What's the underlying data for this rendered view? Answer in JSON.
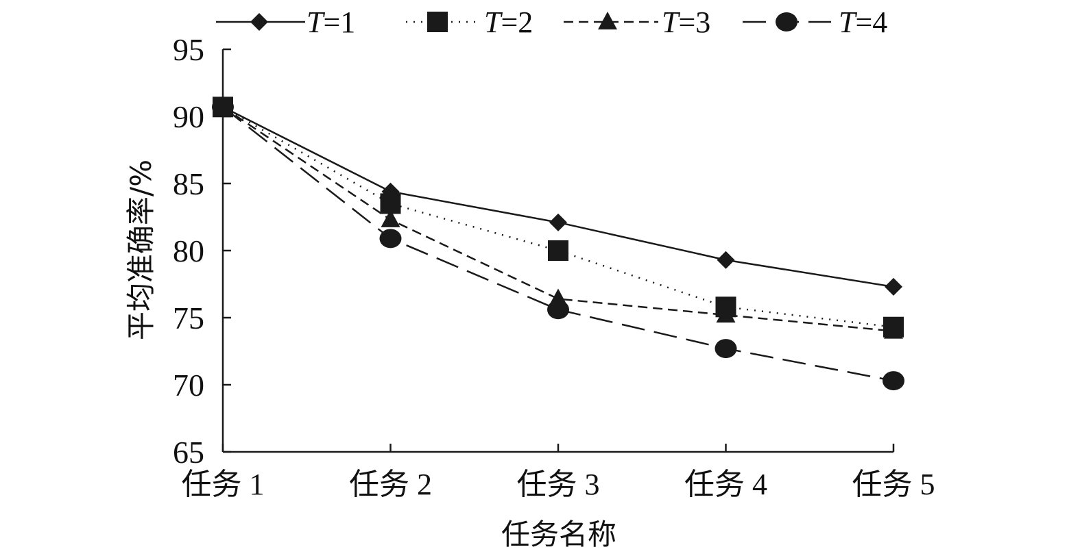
{
  "chart_data": {
    "type": "line",
    "title": "",
    "xlabel": "任务名称",
    "ylabel": "平均准确率/%",
    "categories": [
      "任务 1",
      "任务 2",
      "任务 3",
      "任务 4",
      "任务 5"
    ],
    "ylim": [
      65,
      95
    ],
    "yticks": [
      65,
      70,
      75,
      80,
      85,
      90,
      95
    ],
    "grid": false,
    "legend_position": "top",
    "series": [
      {
        "name": "T=1",
        "var": "T",
        "eq": "=1",
        "marker": "diamond",
        "line": "solid",
        "values": [
          90.7,
          84.4,
          82.1,
          79.3,
          77.3
        ]
      },
      {
        "name": "T=2",
        "var": "T",
        "eq": "=2",
        "marker": "square",
        "line": "dotted",
        "values": [
          90.7,
          83.5,
          80.0,
          75.8,
          74.3
        ]
      },
      {
        "name": "T=3",
        "var": "T",
        "eq": "=3",
        "marker": "triangle",
        "line": "dashed",
        "values": [
          90.7,
          82.3,
          76.4,
          75.2,
          74.0
        ]
      },
      {
        "name": "T=4",
        "var": "T",
        "eq": "=4",
        "marker": "circle",
        "line": "longdash",
        "values": [
          90.7,
          80.9,
          75.6,
          72.7,
          70.3
        ]
      }
    ],
    "colors": {
      "line": "#1a1a1a"
    }
  }
}
